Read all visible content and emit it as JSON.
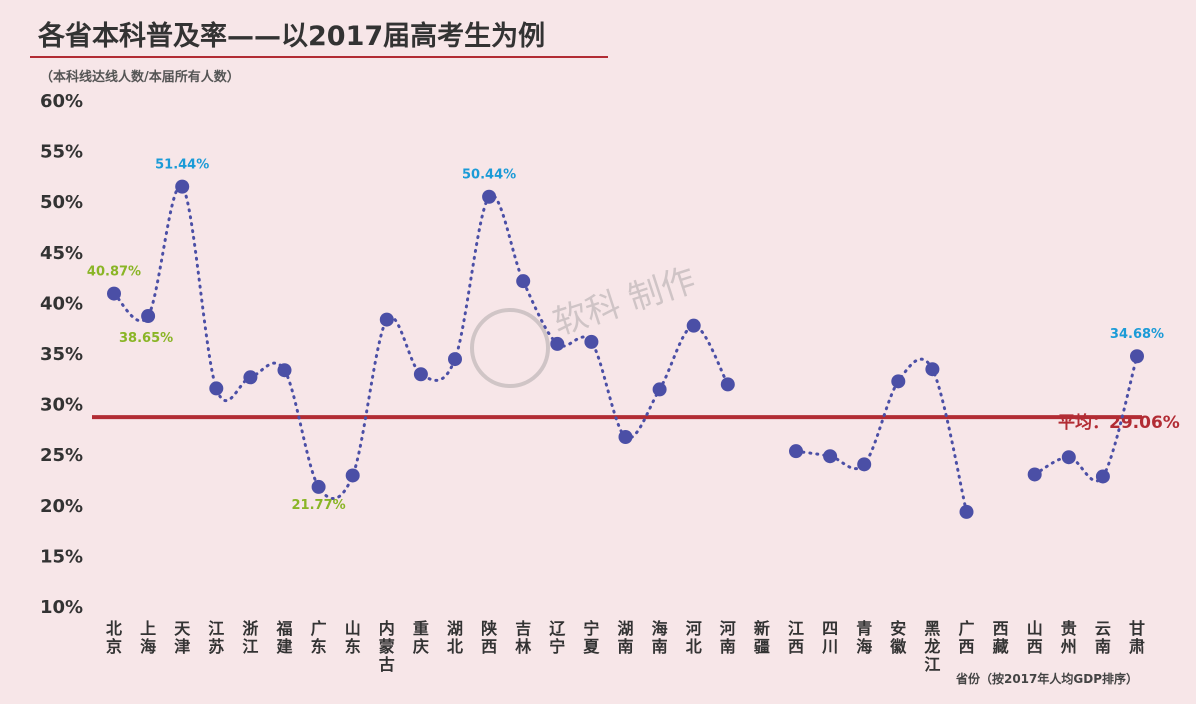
{
  "chart_data": {
    "type": "line",
    "title": "各省本科普及率——以2017届高考生为例",
    "subtitle": "（本科线达线人数/本届所有人数）",
    "xlabel": "省份（按2017年人均GDP排序）",
    "ylabel": "",
    "ylim": [
      10,
      60
    ],
    "yticks": [
      "10%",
      "15%",
      "20%",
      "25%",
      "30%",
      "35%",
      "40%",
      "45%",
      "50%",
      "55%",
      "60%"
    ],
    "categories": [
      "北京",
      "上海",
      "天津",
      "江苏",
      "浙江",
      "福建",
      "广东",
      "山东",
      "内蒙古",
      "重庆",
      "湖北",
      "陕西",
      "吉林",
      "辽宁",
      "宁夏",
      "湖南",
      "海南",
      "河北",
      "河南",
      "新疆",
      "江西",
      "四川",
      "青海",
      "安徽",
      "黑龙江",
      "广西",
      "西藏",
      "山西",
      "贵州",
      "云南",
      "甘肃"
    ],
    "values": [
      40.87,
      38.65,
      51.44,
      31.5,
      32.6,
      33.3,
      21.77,
      22.9,
      38.3,
      32.9,
      34.4,
      50.44,
      42.1,
      35.9,
      36.1,
      26.7,
      31.4,
      37.7,
      31.9,
      null,
      25.3,
      24.8,
      24.0,
      32.2,
      33.4,
      19.3,
      null,
      23.0,
      24.7,
      22.8,
      34.68
    ],
    "data_labels": [
      {
        "index": 0,
        "text": "40.87%",
        "color": "#8ab526"
      },
      {
        "index": 1,
        "text": "38.65%",
        "color": "#8ab526"
      },
      {
        "index": 2,
        "text": "51.44%",
        "color": "#1b9bd7"
      },
      {
        "index": 6,
        "text": "21.77%",
        "color": "#8ab526"
      },
      {
        "index": 11,
        "text": "50.44%",
        "color": "#1b9bd7"
      },
      {
        "index": 30,
        "text": "34.68%",
        "color": "#1b9bd7"
      }
    ],
    "average": {
      "value": 29.06,
      "label": "平均：29.06%",
      "color": "#b22c34"
    },
    "point_color": "#4b4fa6",
    "line_color": "#4b4fa6",
    "watermark": "软科 制作",
    "grid": false
  }
}
